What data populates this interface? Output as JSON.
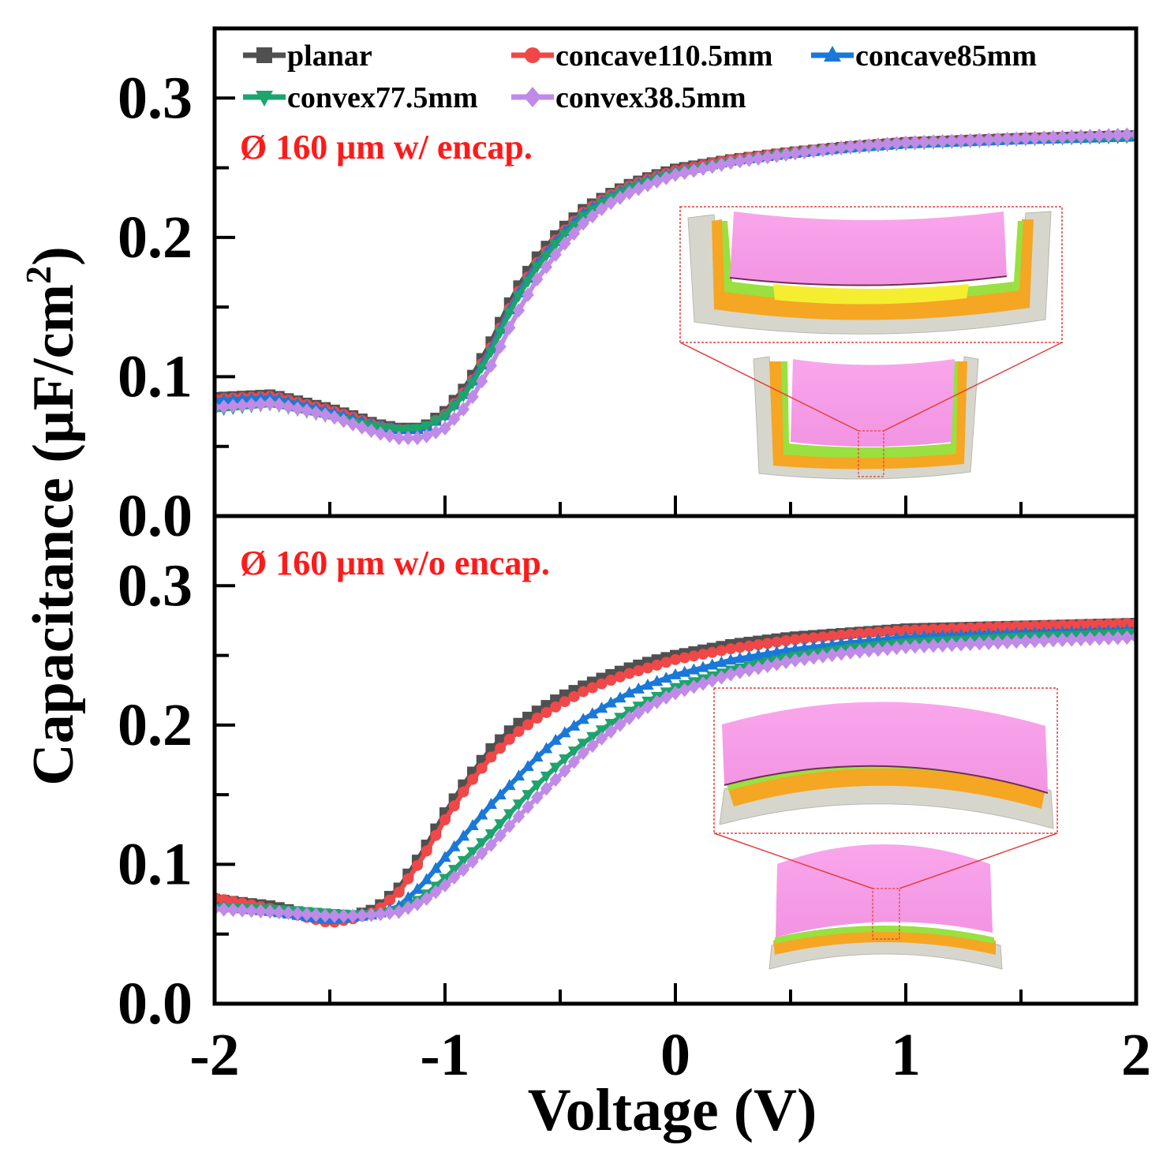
{
  "figure": {
    "ylabel": "Capacitance (μF/cm",
    "ylabel_sup": "2",
    "ylabel_close": ")",
    "xlabel": "Voltage (V)"
  },
  "colors": {
    "planar": "#505050",
    "concave110.5mm": "#f04848",
    "concave85mm": "#1a78d8",
    "convex77.5mm": "#1ca46c",
    "convex38.5mm": "#c08ae8",
    "annotation": "#ff1a1a",
    "inset_box": "#e04040"
  },
  "legend": [
    {
      "label": "planar",
      "key": "planar",
      "marker": "square"
    },
    {
      "label": "concave110.5mm",
      "key": "concave110.5mm",
      "marker": "circle"
    },
    {
      "label": "concave85mm",
      "key": "concave85mm",
      "marker": "triangle-up"
    },
    {
      "label": "convex77.5mm",
      "key": "convex77.5mm",
      "marker": "triangle-down"
    },
    {
      "label": "convex38.5mm",
      "key": "convex38.5mm",
      "marker": "diamond"
    }
  ],
  "chart_data": [
    {
      "type": "line",
      "panel": "top",
      "title": "Ø 160 μm w/ encap.",
      "xlabel": "Voltage (V)",
      "ylabel": "Capacitance (μF/cm2)",
      "xlim": [
        -2,
        2
      ],
      "ylim": [
        0,
        0.35
      ],
      "yticks": [
        0.0,
        0.1,
        0.2,
        0.3
      ],
      "ytick_labels": [
        "0.0",
        "0.1",
        "0.2",
        "0.3"
      ],
      "x": [
        -2.0,
        -1.75,
        -1.5,
        -1.4,
        -1.3,
        -1.2,
        -1.1,
        -1.0,
        -0.9,
        -0.8,
        -0.7,
        -0.6,
        -0.5,
        -0.4,
        -0.3,
        -0.2,
        -0.1,
        0.0,
        0.25,
        0.5,
        0.75,
        1.0,
        1.5,
        2.0
      ],
      "series": [
        {
          "name": "planar",
          "values": [
            0.085,
            0.087,
            0.077,
            0.072,
            0.066,
            0.063,
            0.063,
            0.075,
            0.095,
            0.125,
            0.16,
            0.186,
            0.205,
            0.22,
            0.23,
            0.238,
            0.244,
            0.249,
            0.256,
            0.261,
            0.265,
            0.268,
            0.271,
            0.273
          ]
        },
        {
          "name": "concave110.5mm",
          "values": [
            0.084,
            0.086,
            0.076,
            0.071,
            0.065,
            0.062,
            0.062,
            0.073,
            0.092,
            0.121,
            0.156,
            0.182,
            0.202,
            0.218,
            0.229,
            0.237,
            0.243,
            0.248,
            0.256,
            0.261,
            0.265,
            0.268,
            0.271,
            0.273
          ]
        },
        {
          "name": "concave85mm",
          "values": [
            0.083,
            0.085,
            0.075,
            0.07,
            0.065,
            0.062,
            0.062,
            0.072,
            0.091,
            0.12,
            0.155,
            0.181,
            0.201,
            0.217,
            0.228,
            0.236,
            0.242,
            0.247,
            0.255,
            0.26,
            0.264,
            0.267,
            0.27,
            0.272
          ]
        },
        {
          "name": "convex77.5mm",
          "values": [
            0.076,
            0.08,
            0.071,
            0.067,
            0.064,
            0.062,
            0.063,
            0.072,
            0.09,
            0.118,
            0.153,
            0.179,
            0.199,
            0.215,
            0.227,
            0.235,
            0.241,
            0.246,
            0.254,
            0.26,
            0.264,
            0.267,
            0.27,
            0.272
          ]
        },
        {
          "name": "convex38.5mm",
          "values": [
            0.078,
            0.081,
            0.072,
            0.066,
            0.06,
            0.056,
            0.056,
            0.063,
            0.08,
            0.108,
            0.142,
            0.17,
            0.192,
            0.21,
            0.223,
            0.232,
            0.239,
            0.245,
            0.254,
            0.26,
            0.265,
            0.268,
            0.271,
            0.274
          ]
        }
      ]
    },
    {
      "type": "line",
      "panel": "bottom",
      "title": "Ø 160 μm w/o encap.",
      "xlabel": "Voltage (V)",
      "ylabel": "Capacitance (μF/cm2)",
      "xlim": [
        -2,
        2
      ],
      "ylim": [
        0,
        0.35
      ],
      "yticks": [
        0.0,
        0.1,
        0.2,
        0.3
      ],
      "ytick_labels": [
        "0.0",
        "0.1",
        "0.2",
        "0.3"
      ],
      "xticks": [
        -2,
        -1,
        0,
        1,
        2
      ],
      "xtick_labels": [
        "-2",
        "-1",
        "0",
        "1",
        "2"
      ],
      "x": [
        -2.0,
        -1.75,
        -1.5,
        -1.4,
        -1.3,
        -1.2,
        -1.1,
        -1.0,
        -0.9,
        -0.8,
        -0.7,
        -0.6,
        -0.5,
        -0.4,
        -0.3,
        -0.2,
        -0.1,
        0.0,
        0.25,
        0.5,
        0.75,
        1.0,
        1.5,
        2.0
      ],
      "series": [
        {
          "name": "planar",
          "values": [
            0.075,
            0.07,
            0.061,
            0.063,
            0.068,
            0.083,
            0.108,
            0.137,
            0.162,
            0.183,
            0.199,
            0.21,
            0.22,
            0.228,
            0.235,
            0.241,
            0.246,
            0.25,
            0.258,
            0.263,
            0.266,
            0.269,
            0.271,
            0.273
          ]
        },
        {
          "name": "concave110.5mm",
          "values": [
            0.076,
            0.068,
            0.058,
            0.061,
            0.066,
            0.08,
            0.104,
            0.132,
            0.157,
            0.177,
            0.193,
            0.205,
            0.215,
            0.224,
            0.231,
            0.237,
            0.242,
            0.247,
            0.255,
            0.261,
            0.265,
            0.268,
            0.271,
            0.273
          ]
        },
        {
          "name": "concave85mm",
          "values": [
            0.07,
            0.066,
            0.06,
            0.062,
            0.064,
            0.07,
            0.085,
            0.105,
            0.124,
            0.143,
            0.16,
            0.177,
            0.192,
            0.204,
            0.214,
            0.223,
            0.23,
            0.236,
            0.247,
            0.254,
            0.259,
            0.263,
            0.266,
            0.268
          ]
        },
        {
          "name": "convex77.5mm",
          "values": [
            0.069,
            0.068,
            0.065,
            0.064,
            0.064,
            0.067,
            0.076,
            0.09,
            0.106,
            0.122,
            0.14,
            0.157,
            0.173,
            0.187,
            0.199,
            0.21,
            0.219,
            0.227,
            0.24,
            0.249,
            0.255,
            0.259,
            0.263,
            0.266
          ]
        },
        {
          "name": "convex38.5mm",
          "values": [
            0.068,
            0.066,
            0.063,
            0.063,
            0.064,
            0.066,
            0.073,
            0.085,
            0.099,
            0.114,
            0.131,
            0.148,
            0.164,
            0.18,
            0.193,
            0.205,
            0.215,
            0.223,
            0.237,
            0.246,
            0.252,
            0.256,
            0.26,
            0.263
          ]
        }
      ]
    }
  ]
}
